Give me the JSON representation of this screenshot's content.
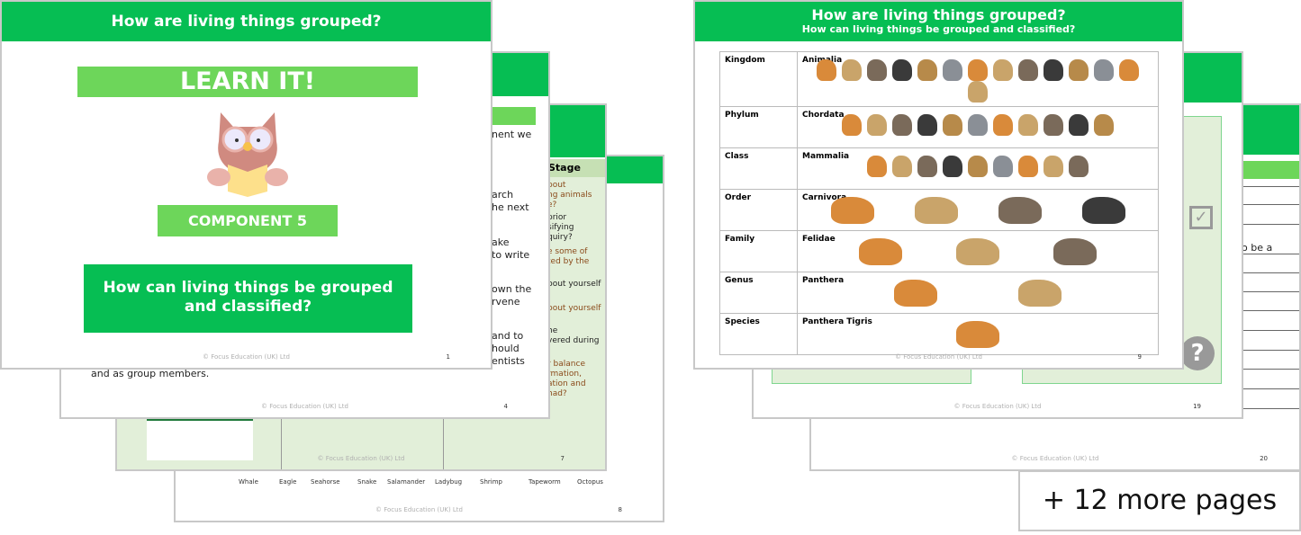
{
  "footer_text": "© Focus Education (UK) Ltd",
  "colors": {
    "green": "#06be53",
    "light_green": "#6dd65a",
    "pale_green": "#e2efd9"
  },
  "page8": {
    "number": "8",
    "animal_labels": [
      "Whale",
      "Eagle",
      "Seahorse",
      "Snake",
      "Salamander",
      "Ladybug",
      "Shrimp",
      "Tapeworm",
      "Octopus"
    ]
  },
  "page7": {
    "number": "7",
    "column_header": "Stage",
    "fragments": [
      "bout",
      "ng animals",
      "e?",
      "prior",
      "sifying",
      "quiry?",
      "e some of",
      "ted by the",
      "bout yourself",
      "bout yourself",
      "he",
      "vered during",
      "r balance",
      "rmation,",
      "ation and",
      "had?"
    ]
  },
  "page4": {
    "number": "4",
    "fragments": [
      "nent we",
      "arch",
      "he next",
      "ake",
      "to write",
      "own the",
      "rvene",
      "and to",
      "hould",
      "entists",
      "and as group members."
    ]
  },
  "page1": {
    "number": "1",
    "title": "How are living things grouped?",
    "learn_it": "LEARN IT!",
    "component": "COMPONENT 5",
    "question": "How can living things be grouped and classified?",
    "icon": "owl-reading-book-icon"
  },
  "page20": {
    "number": "20",
    "fragment": "o be a"
  },
  "page19": {
    "number": "19",
    "fragment": "?",
    "icons": [
      "checkbox-icon",
      "question-mark-icon"
    ]
  },
  "page9": {
    "number": "9",
    "title": "How are living things grouped?",
    "subtitle": "How can living things be grouped and classified?",
    "rows": [
      {
        "rank": "Kingdom",
        "name": "Animalia"
      },
      {
        "rank": "Phylum",
        "name": "Chordata"
      },
      {
        "rank": "Class",
        "name": "Mammalia"
      },
      {
        "rank": "Order",
        "name": "Carnivora"
      },
      {
        "rank": "Family",
        "name": "Felidae"
      },
      {
        "rank": "Genus",
        "name": "Panthera"
      },
      {
        "rank": "Species",
        "name": "Panthera Tigris"
      }
    ]
  },
  "more_pages": "+ 12 more pages"
}
